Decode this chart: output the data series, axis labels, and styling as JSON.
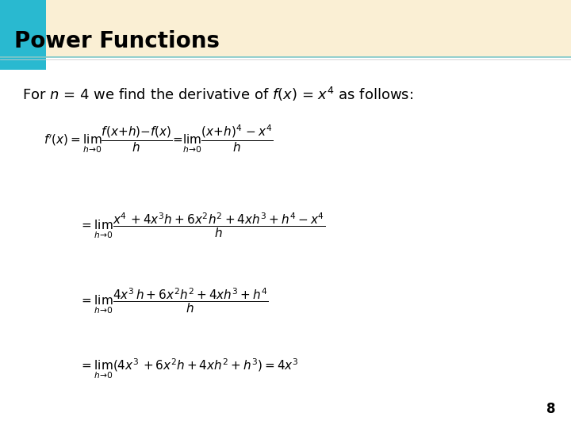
{
  "title": "Power Functions",
  "title_bg_color": "#faefd4",
  "title_square_color": "#29b9d0",
  "title_fontsize": 20,
  "body_bg_color": "#ffffff",
  "intro_text_parts": [
    "For ",
    "n",
    " = 4 we find the derivative of ",
    "f",
    "(",
    "x",
    ") = ",
    "x",
    "4",
    " as follows:"
  ],
  "eq1": "$f'(x) = \\lim_{h\\to 0} \\dfrac{f(x + h) - f(x)}{h} = \\lim_{h\\to 0} \\dfrac{(x + h)^4 - x^4}{h}$",
  "eq2": "$= \\lim_{h\\to 0} \\dfrac{x^4 + 4x^3h + 6x^2h^2 + 4xh^3 + h^4 - x^4}{h}$",
  "eq3": "$= \\lim_{h\\to 0} \\dfrac{4x^3h + 6x^2h^2 + 4xh^3 + h^4}{h}$",
  "eq4": "$= \\lim_{h\\to 0} (4x^3 + 6x^2h + 4xh^2 + h^3) = 4x^3$",
  "page_number": "8",
  "text_color": "#000000",
  "fontsize_intro": 13,
  "fontsize_eq": 11
}
